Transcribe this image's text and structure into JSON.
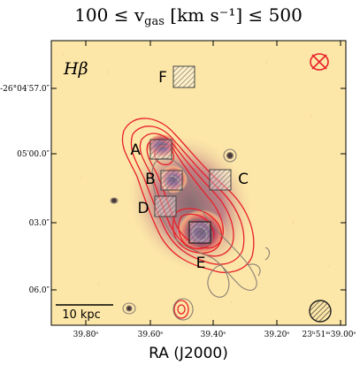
{
  "figure": {
    "title_prefix": "100 ≤ v",
    "title_sub": "gas",
    "title_suffix": " [km s⁻¹] ≤ 500",
    "panel_label": "Hβ",
    "xlabel": "RA (J2000)",
    "x_ticks": [
      "39.80ˢ",
      "39.60ˢ",
      "39.40ˢ",
      "39.20ˢ",
      "23ʰ51ᵐ39.00ˢ"
    ],
    "y_ticks": [
      "-26°04′57.0″",
      "05′00.0″",
      "03.0″",
      "06.0″"
    ],
    "scale_bar_label": "10 kpc",
    "regions": [
      {
        "id": "A"
      },
      {
        "id": "B"
      },
      {
        "id": "C"
      },
      {
        "id": "D"
      },
      {
        "id": "E"
      },
      {
        "id": "F"
      }
    ],
    "colors": {
      "background": "#fde7a8",
      "contour_red": "#e8202a",
      "contour_gray": "#8a7f74",
      "core": "#2a1240"
    },
    "icons": [
      "beam-ellipse-icon",
      "psf-cross-ellipse-icon"
    ]
  }
}
